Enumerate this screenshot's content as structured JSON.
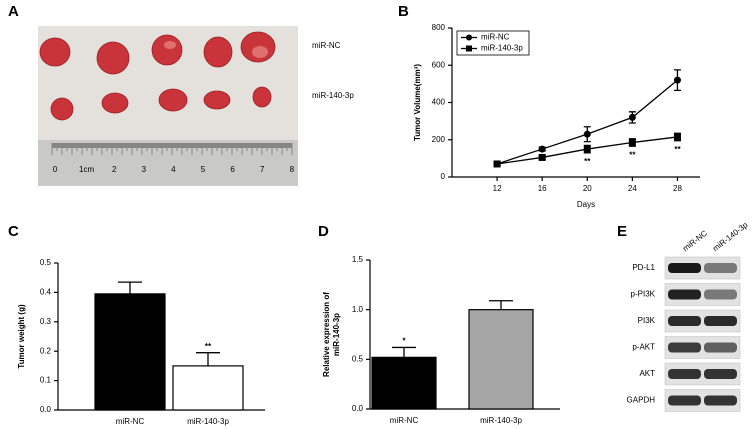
{
  "panel_labels": [
    "A",
    "B",
    "C",
    "D",
    "E"
  ],
  "photo": {
    "row_labels": [
      "miR-NC",
      "miR-140-3p"
    ],
    "ruler_labels": [
      "0",
      "1cm",
      "2",
      "3",
      "4",
      "5",
      "6",
      "7",
      "8"
    ]
  },
  "blot": {
    "columns": [
      "miR-NC",
      "miR-140-3p"
    ],
    "rows": [
      "PD-L1",
      "p-PI3K",
      "PI3K",
      "p-AKT",
      "AKT",
      "GAPDH"
    ]
  },
  "chart_data": [
    {
      "type": "line",
      "ylabel": "Tumor Volume(mm³)",
      "xlabel": "Days",
      "x": [
        12,
        16,
        20,
        24,
        28
      ],
      "xlim": [
        8,
        30
      ],
      "xticks": [
        12,
        16,
        20,
        24,
        28
      ],
      "ylim": [
        0,
        800
      ],
      "yticks": [
        0,
        200,
        400,
        600,
        800
      ],
      "legend": "upper left",
      "series": [
        {
          "name": "miR-NC",
          "color": "#000000",
          "marker": "circle",
          "values": [
            70,
            150,
            230,
            320,
            520
          ],
          "errors": [
            10,
            10,
            40,
            30,
            55
          ]
        },
        {
          "name": "miR-140-3p",
          "color": "#000000",
          "marker": "square",
          "values": [
            70,
            105,
            150,
            185,
            215
          ],
          "errors": [
            10,
            10,
            20,
            20,
            20
          ],
          "annotations": [
            null,
            null,
            "**",
            "**",
            "**"
          ]
        }
      ]
    },
    {
      "type": "bar",
      "ylabel": "Tumor weight (g)",
      "categories": [
        "miR-NC",
        "miR-140-3p"
      ],
      "values": [
        0.395,
        0.15
      ],
      "errors": [
        0.04,
        0.045
      ],
      "colors": [
        "#000000",
        "#ffffff"
      ],
      "annotations": [
        null,
        "**"
      ],
      "ylim": [
        0,
        0.5
      ],
      "yticks": [
        {
          "value": 0,
          "label": "0.0"
        },
        0.1,
        0.2,
        0.3,
        0.4,
        0.5
      ]
    },
    {
      "type": "bar",
      "ylabel": [
        "Relative expression of",
        "miR-140-3p"
      ],
      "categories": [
        "miR-NC",
        "miR-140-3p"
      ],
      "values": [
        0.52,
        1.0
      ],
      "errors": [
        0.1,
        0.09
      ],
      "colors": [
        "#000000",
        "#a6a6a6"
      ],
      "annotations": [
        "*",
        null
      ],
      "ylim": [
        0,
        1.5
      ],
      "yticks": [
        {
          "value": 0,
          "label": "0.0"
        },
        0.5,
        {
          "value": 1,
          "label": "1.0"
        },
        1.5
      ]
    }
  ]
}
